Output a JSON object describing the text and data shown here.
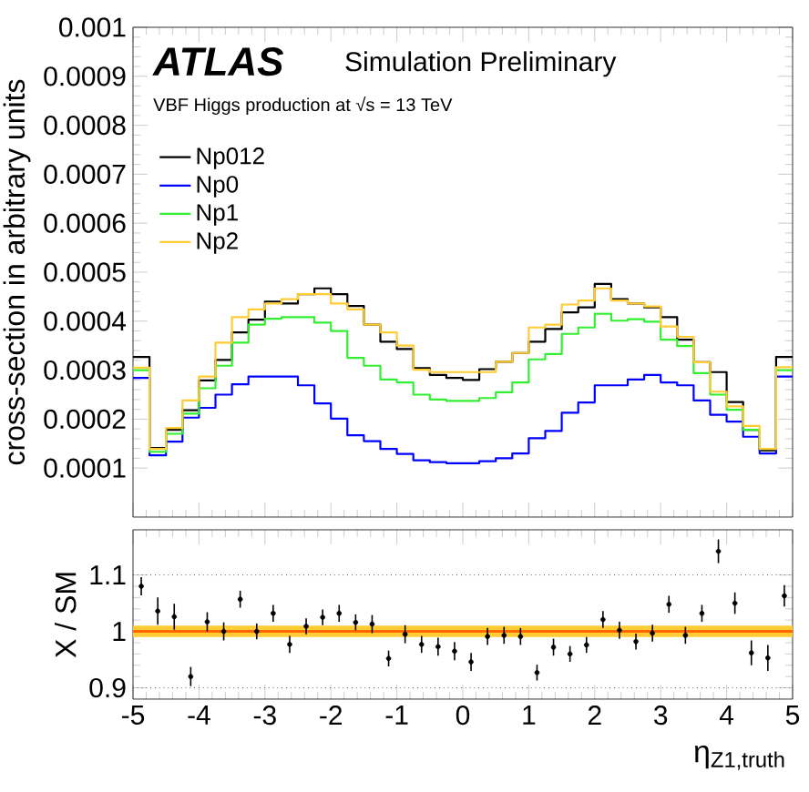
{
  "chart_data": [
    {
      "type": "histogram",
      "ylabel": "cross-section in arbitrary units",
      "annotations": [
        "ATLAS",
        "Simulation Preliminary",
        "VBF Higgs production at √s = 13 TeV"
      ],
      "bins": [
        -5,
        -4.75,
        -4.5,
        -4.25,
        -4,
        -3.75,
        -3.5,
        -3.25,
        -3,
        -2.75,
        -2.5,
        -2.25,
        -2,
        -1.75,
        -1.5,
        -1.25,
        -1,
        -0.75,
        -0.5,
        -0.25,
        0,
        0.25,
        0.5,
        0.75,
        1,
        1.25,
        1.5,
        1.75,
        2,
        2.25,
        2.5,
        2.75,
        3,
        3.25,
        3.5,
        3.75,
        4,
        4.25,
        4.5,
        4.75,
        5
      ],
      "series": [
        {
          "name": "Np012",
          "color": "#000000",
          "values": [
            0.000327,
            0.000141,
            0.000178,
            0.000218,
            0.000279,
            0.000321,
            0.000377,
            0.000403,
            0.00044,
            0.000436,
            0.000455,
            0.000467,
            0.000455,
            0.000431,
            0.000393,
            0.000358,
            0.000343,
            0.000304,
            0.00029,
            0.000284,
            0.00028,
            0.000302,
            0.000317,
            0.000335,
            0.000358,
            0.000384,
            0.000418,
            0.000428,
            0.000476,
            0.000445,
            0.000436,
            0.000428,
            0.000408,
            0.000362,
            0.000316,
            0.000296,
            0.000235,
            0.000178,
            0.000136,
            0.000327
          ]
        },
        {
          "name": "Np0",
          "color": "#0000ff",
          "values": [
            0.000284,
            0.000126,
            0.000154,
            0.000203,
            0.000223,
            0.00025,
            0.000271,
            0.000287,
            0.000287,
            0.000287,
            0.000269,
            0.000232,
            0.000201,
            0.000167,
            0.000155,
            0.000139,
            0.000129,
            0.000116,
            0.000112,
            0.00011,
            0.00011,
            0.000114,
            0.00012,
            0.00013,
            0.000161,
            0.000176,
            0.000213,
            0.000234,
            0.000269,
            0.000269,
            0.000281,
            0.00029,
            0.000275,
            0.000269,
            0.000238,
            0.000209,
            0.000195,
            0.000164,
            0.00013,
            0.000287
          ]
        },
        {
          "name": "Np1",
          "color": "#33ee33",
          "values": [
            0.0003,
            0.000133,
            0.00017,
            0.000211,
            0.000263,
            0.000309,
            0.000356,
            0.000393,
            0.000405,
            0.000408,
            0.000408,
            0.000397,
            0.00038,
            0.000325,
            0.000309,
            0.000281,
            0.000275,
            0.00025,
            0.00024,
            0.000237,
            0.000237,
            0.000243,
            0.000255,
            0.000275,
            0.000322,
            0.000333,
            0.000374,
            0.000387,
            0.000415,
            0.000401,
            0.000404,
            0.000399,
            0.000362,
            0.000349,
            0.000294,
            0.00025,
            0.000219,
            0.000178,
            0.000139,
            0.0003
          ]
        },
        {
          "name": "Np2",
          "color": "#ffcc33",
          "values": [
            0.000305,
            0.000139,
            0.000182,
            0.000238,
            0.000287,
            0.000356,
            0.000408,
            0.000424,
            0.000436,
            0.000445,
            0.000455,
            0.000455,
            0.000436,
            0.000424,
            0.000393,
            0.000377,
            0.00035,
            0.000301,
            0.000296,
            0.000296,
            0.000296,
            0.000296,
            0.000317,
            0.000335,
            0.000387,
            0.000393,
            0.000434,
            0.000442,
            0.000467,
            0.000442,
            0.000436,
            0.00043,
            0.000389,
            0.000368,
            0.000316,
            0.000256,
            0.000226,
            0.000186,
            0.000139,
            0.000306
          ]
        }
      ],
      "xlim": [
        -5,
        5
      ],
      "xticks": [
        -5,
        -4,
        -3,
        -2,
        -1,
        0,
        1,
        2,
        3,
        4,
        5
      ],
      "ylim": [
        0,
        0.001
      ],
      "yticks": [
        0.0001,
        0.0002,
        0.0003,
        0.0004,
        0.0005,
        0.0006,
        0.0007,
        0.0008,
        0.0009,
        0.001
      ],
      "tick_labels": "y",
      "legend": "top left"
    },
    {
      "type": "scatter",
      "xlabel": "η$_{Z1,truth}$",
      "ylabel": "X / SM",
      "marker": "circle",
      "grid": "y",
      "x": [
        -4.875,
        -4.625,
        -4.375,
        -4.125,
        -3.875,
        -3.625,
        -3.375,
        -3.125,
        -2.875,
        -2.625,
        -2.375,
        -2.125,
        -1.875,
        -1.625,
        -1.375,
        -1.125,
        -0.875,
        -0.625,
        -0.375,
        -0.125,
        0.125,
        0.375,
        0.625,
        0.875,
        1.125,
        1.375,
        1.625,
        1.875,
        2.125,
        2.375,
        2.625,
        2.875,
        3.125,
        3.375,
        3.625,
        3.875,
        4.125,
        4.375,
        4.625,
        4.875
      ],
      "values": [
        1.08,
        1.036,
        1.026,
        0.92,
        1.017,
        1.0,
        1.057,
        1.0,
        1.032,
        0.977,
        1.009,
        1.025,
        1.032,
        1.016,
        1.013,
        0.952,
        0.995,
        0.977,
        0.973,
        0.965,
        0.946,
        0.991,
        0.993,
        0.991,
        0.927,
        0.972,
        0.96,
        0.976,
        1.021,
        1.002,
        0.982,
        0.997,
        1.048,
        0.993,
        1.032,
        1.142,
        1.05,
        0.962,
        0.953,
        1.063
      ],
      "errors": [
        0.016,
        0.024,
        0.023,
        0.017,
        0.017,
        0.016,
        0.015,
        0.014,
        0.015,
        0.015,
        0.014,
        0.014,
        0.015,
        0.014,
        0.016,
        0.014,
        0.016,
        0.015,
        0.016,
        0.016,
        0.016,
        0.015,
        0.015,
        0.015,
        0.014,
        0.015,
        0.014,
        0.014,
        0.015,
        0.015,
        0.014,
        0.015,
        0.015,
        0.015,
        0.015,
        0.021,
        0.019,
        0.022,
        0.023,
        0.019
      ],
      "color": "#000000",
      "bands": [
        {
          "axis": "y",
          "from": 0.99,
          "to": 1.01,
          "color": "#ffcc33"
        }
      ],
      "ref_lines": [
        {
          "axis": "y",
          "value": 1,
          "color": "#ff6600"
        }
      ],
      "xlim": [
        -5,
        5
      ],
      "xticks": [
        -5,
        -4,
        -3,
        -2,
        -1,
        0,
        1,
        2,
        3,
        4,
        5
      ],
      "ylim": [
        0.88,
        1.18
      ],
      "yticks": [
        0.9,
        1,
        1.1
      ]
    }
  ]
}
